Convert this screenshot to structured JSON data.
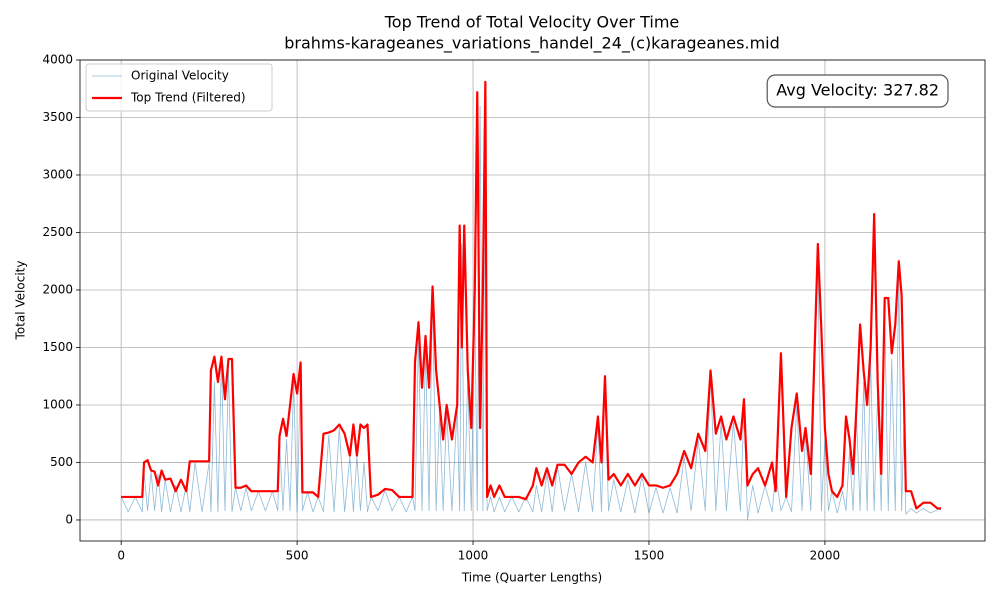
{
  "chart_data": {
    "type": "line",
    "title": "Top Trend of Total Velocity Over Time",
    "subtitle": "brahms-karageanes_variations_handel_24_(c)karageanes.mid",
    "xlabel": "Time (Quarter Lengths)",
    "ylabel": "Total Velocity",
    "annotation": "Avg Velocity: 327.82",
    "grid": true,
    "legend": "upper left",
    "xlim": [
      -117,
      2455
    ],
    "ylim": [
      -183,
      4000
    ],
    "xticks": [
      0,
      500,
      1000,
      1500,
      2000
    ],
    "yticks": [
      0,
      500,
      1000,
      1500,
      2000,
      2500,
      3000,
      3500,
      4000
    ],
    "x": [
      0,
      20,
      40,
      60,
      65,
      75,
      85,
      95,
      105,
      115,
      125,
      140,
      155,
      170,
      185,
      195,
      210,
      230,
      250,
      255,
      265,
      275,
      285,
      295,
      305,
      315,
      325,
      340,
      355,
      370,
      390,
      410,
      430,
      445,
      450,
      460,
      470,
      480,
      490,
      500,
      510,
      515,
      530,
      545,
      560,
      575,
      590,
      605,
      620,
      635,
      650,
      660,
      670,
      680,
      690,
      700,
      710,
      730,
      750,
      770,
      790,
      810,
      828,
      835,
      845,
      855,
      865,
      875,
      885,
      895,
      905,
      915,
      925,
      940,
      955,
      962,
      968,
      975,
      985,
      995,
      1005,
      1012,
      1020,
      1028,
      1035,
      1040,
      1050,
      1060,
      1075,
      1090,
      1110,
      1130,
      1150,
      1170,
      1180,
      1195,
      1210,
      1225,
      1240,
      1260,
      1280,
      1300,
      1320,
      1340,
      1355,
      1365,
      1375,
      1385,
      1400,
      1420,
      1440,
      1460,
      1480,
      1500,
      1520,
      1540,
      1560,
      1580,
      1600,
      1620,
      1640,
      1660,
      1675,
      1690,
      1705,
      1720,
      1740,
      1760,
      1770,
      1780,
      1795,
      1810,
      1830,
      1850,
      1860,
      1875,
      1890,
      1905,
      1920,
      1935,
      1945,
      1960,
      1980,
      1990,
      2000,
      2010,
      2020,
      2035,
      2050,
      2060,
      2070,
      2080,
      2090,
      2100,
      2110,
      2120,
      2130,
      2140,
      2150,
      2160,
      2170,
      2180,
      2190,
      2200,
      2210,
      2218,
      2225,
      2230,
      2245,
      2260,
      2280,
      2300,
      2320,
      2330
    ],
    "series": [
      {
        "name": "Original Velocity",
        "color": "#1f77b4",
        "values": [
          200,
          70,
          200,
          70,
          420,
          80,
          420,
          80,
          400,
          70,
          350,
          70,
          300,
          70,
          300,
          70,
          500,
          70,
          500,
          70,
          1200,
          70,
          1400,
          80,
          1300,
          70,
          280,
          80,
          280,
          80,
          250,
          80,
          250,
          80,
          700,
          80,
          700,
          80,
          1200,
          70,
          1300,
          80,
          240,
          70,
          200,
          70,
          740,
          70,
          800,
          70,
          550,
          70,
          560,
          80,
          500,
          70,
          200,
          80,
          260,
          80,
          200,
          70,
          200,
          80,
          1600,
          80,
          1500,
          80,
          2000,
          80,
          950,
          80,
          950,
          80,
          980,
          80,
          2400,
          80,
          1250,
          80,
          1900,
          80,
          3600,
          80,
          3700,
          80,
          200,
          70,
          200,
          70,
          200,
          70,
          200,
          70,
          300,
          70,
          400,
          70,
          470,
          80,
          400,
          70,
          500,
          70,
          850,
          70,
          1200,
          80,
          350,
          70,
          350,
          60,
          380,
          60,
          280,
          60,
          280,
          60,
          550,
          80,
          700,
          80,
          1250,
          80,
          850,
          80,
          850,
          80,
          1000,
          0,
          300,
          60,
          300,
          70,
          400,
          80,
          200,
          70,
          1000,
          80,
          750,
          80,
          2300,
          80,
          700,
          80,
          250,
          60,
          250,
          80,
          600,
          80,
          900,
          80,
          1200,
          80,
          1400,
          80,
          1100,
          80,
          1800,
          80,
          1400,
          80,
          2100,
          80,
          900,
          50,
          100,
          60,
          100,
          60,
          90,
          90
        ]
      },
      {
        "name": "Top Trend (Filtered)",
        "color": "#ff0000",
        "values": [
          200,
          200,
          200,
          200,
          500,
          520,
          430,
          420,
          300,
          430,
          350,
          360,
          250,
          350,
          250,
          510,
          510,
          510,
          510,
          1300,
          1420,
          1200,
          1420,
          1050,
          1400,
          1400,
          280,
          280,
          300,
          250,
          250,
          250,
          250,
          250,
          730,
          880,
          730,
          1000,
          1270,
          1100,
          1370,
          240,
          240,
          240,
          200,
          750,
          760,
          780,
          830,
          750,
          560,
          830,
          560,
          830,
          800,
          830,
          200,
          220,
          270,
          260,
          200,
          200,
          200,
          1370,
          1720,
          1150,
          1600,
          1150,
          2030,
          1300,
          1000,
          700,
          1000,
          700,
          1000,
          2560,
          1500,
          2560,
          1300,
          800,
          2000,
          3720,
          800,
          2000,
          3810,
          200,
          300,
          200,
          300,
          200,
          200,
          200,
          180,
          300,
          450,
          300,
          450,
          300,
          480,
          480,
          400,
          500,
          550,
          500,
          900,
          500,
          1250,
          350,
          400,
          300,
          400,
          300,
          400,
          300,
          300,
          280,
          300,
          400,
          600,
          450,
          750,
          600,
          1300,
          750,
          900,
          700,
          900,
          700,
          1050,
          300,
          400,
          450,
          300,
          500,
          250,
          1450,
          200,
          800,
          1100,
          600,
          800,
          400,
          2400,
          1650,
          800,
          400,
          250,
          200,
          300,
          900,
          700,
          400,
          1000,
          1700,
          1300,
          1000,
          1500,
          2660,
          1200,
          400,
          1930,
          1930,
          1450,
          1700,
          2250,
          1950,
          1000,
          250,
          250,
          100,
          150,
          150,
          100,
          100
        ]
      }
    ]
  }
}
